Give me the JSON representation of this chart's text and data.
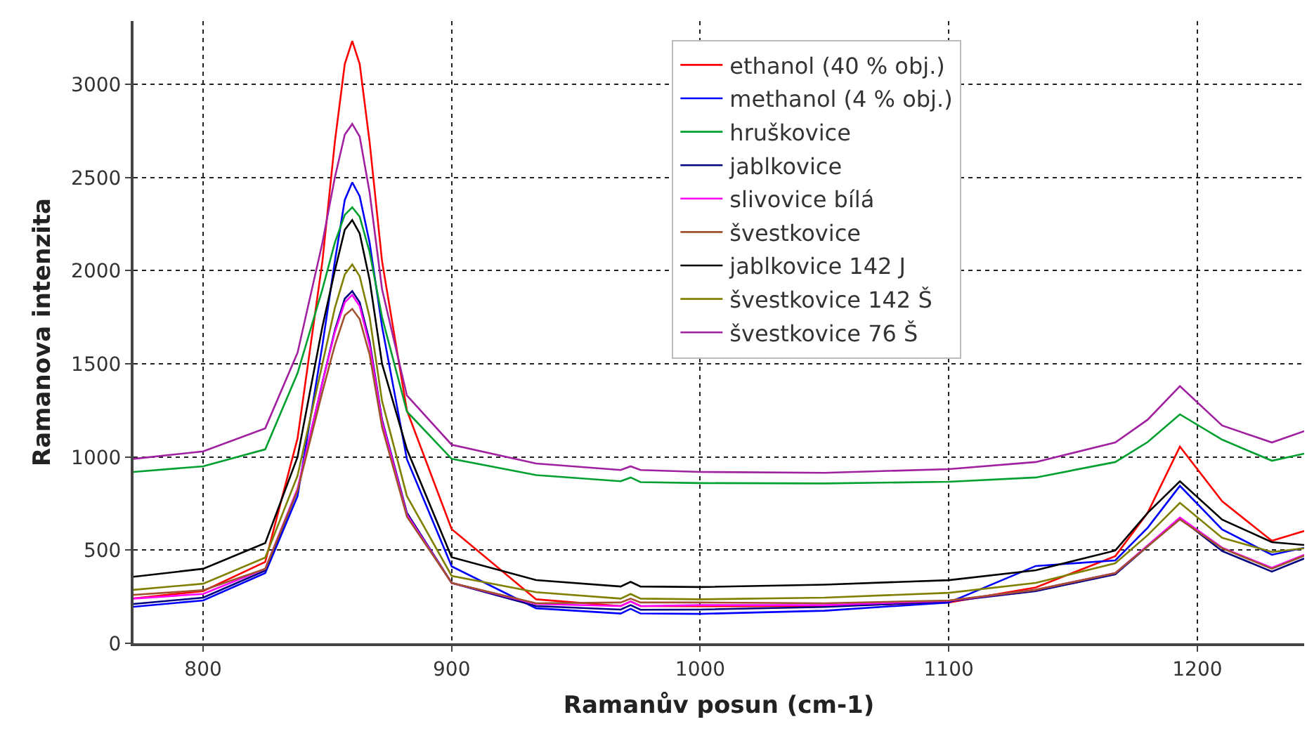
{
  "chart_data": {
    "type": "line",
    "xlabel": "Ramanův posun (cm-1)",
    "ylabel": "Ramanova intenzita",
    "x": [
      772,
      800,
      825,
      838,
      848,
      853,
      857,
      860,
      863,
      867,
      872,
      882,
      900,
      934,
      968,
      972,
      976,
      1000,
      1050,
      1100,
      1135,
      1167,
      1180,
      1193,
      1210,
      1230,
      1243
    ],
    "xlim": [
      772,
      1243
    ],
    "xticks": [
      800,
      900,
      1000,
      1100,
      1200
    ],
    "ylim": [
      0,
      3340
    ],
    "yticks": [
      0,
      500,
      1000,
      1500,
      2000,
      2500,
      3000
    ],
    "grid": true,
    "legend": "top",
    "marker": "none",
    "line_style": "solid",
    "series": [
      {
        "name": "ethanol (40 % obj.)",
        "color": "#ff0000",
        "values": [
          241,
          280,
          437,
          1100,
          2050,
          2690,
          3110,
          3233,
          3110,
          2690,
          2050,
          1250,
          613,
          236,
          200,
          225,
          200,
          199,
          200,
          219,
          300,
          468,
          700,
          1056,
          762,
          550,
          603
        ]
      },
      {
        "name": "methanol (4 % obj.)",
        "color": "#0000ff",
        "values": [
          196,
          230,
          377,
          790,
          1600,
          2050,
          2380,
          2474,
          2400,
          2150,
          1700,
          988,
          413,
          188,
          160,
          185,
          160,
          158,
          175,
          219,
          415,
          445,
          620,
          845,
          611,
          475,
          513
        ]
      },
      {
        "name": "hruškovice",
        "color": "#00a030",
        "values": [
          920,
          950,
          1041,
          1450,
          1900,
          2150,
          2300,
          2340,
          2290,
          2100,
          1750,
          1244,
          990,
          903,
          870,
          890,
          865,
          860,
          858,
          867,
          890,
          973,
          1080,
          1229,
          1093,
          980,
          1018
        ]
      },
      {
        "name": "jablkovice",
        "color": "#000080",
        "values": [
          211,
          245,
          390,
          820,
          1400,
          1680,
          1850,
          1890,
          1830,
          1620,
          1200,
          700,
          324,
          200,
          181,
          205,
          180,
          181,
          195,
          225,
          280,
          370,
          520,
          671,
          495,
          385,
          455
        ]
      },
      {
        "name": "slivovice bílá",
        "color": "#ff00ff",
        "values": [
          240,
          265,
          400,
          830,
          1400,
          1670,
          1830,
          1870,
          1810,
          1600,
          1190,
          690,
          324,
          211,
          200,
          225,
          200,
          205,
          205,
          228,
          287,
          377,
          525,
          675,
          513,
          405,
          475
        ]
      },
      {
        "name": "švestkovice",
        "color": "#a0522d",
        "values": [
          260,
          285,
          400,
          820,
          1350,
          1600,
          1760,
          1795,
          1740,
          1550,
          1160,
          680,
          324,
          215,
          219,
          240,
          219,
          219,
          215,
          230,
          287,
          377,
          520,
          665,
          510,
          400,
          470
        ]
      },
      {
        "name": "jablkovice 142 J",
        "color": "#000000",
        "values": [
          357,
          400,
          538,
          1000,
          1700,
          2000,
          2220,
          2272,
          2200,
          1950,
          1500,
          1041,
          462,
          339,
          305,
          330,
          305,
          302,
          315,
          339,
          392,
          498,
          700,
          870,
          664,
          543,
          528
        ]
      },
      {
        "name": "švestkovice 142 Š",
        "color": "#808000",
        "values": [
          287,
          320,
          460,
          900,
          1500,
          1800,
          1980,
          2034,
          1970,
          1750,
          1300,
          790,
          362,
          274,
          240,
          265,
          240,
          236,
          245,
          271,
          324,
          430,
          580,
          754,
          566,
          490,
          510
        ]
      },
      {
        "name": "švestkovice 76 Š",
        "color": "#a020a0",
        "values": [
          990,
          1030,
          1154,
          1560,
          2150,
          2500,
          2730,
          2788,
          2720,
          2420,
          1900,
          1330,
          1066,
          965,
          930,
          950,
          930,
          920,
          915,
          935,
          973,
          1078,
          1200,
          1380,
          1169,
          1078,
          1139
        ]
      }
    ]
  }
}
